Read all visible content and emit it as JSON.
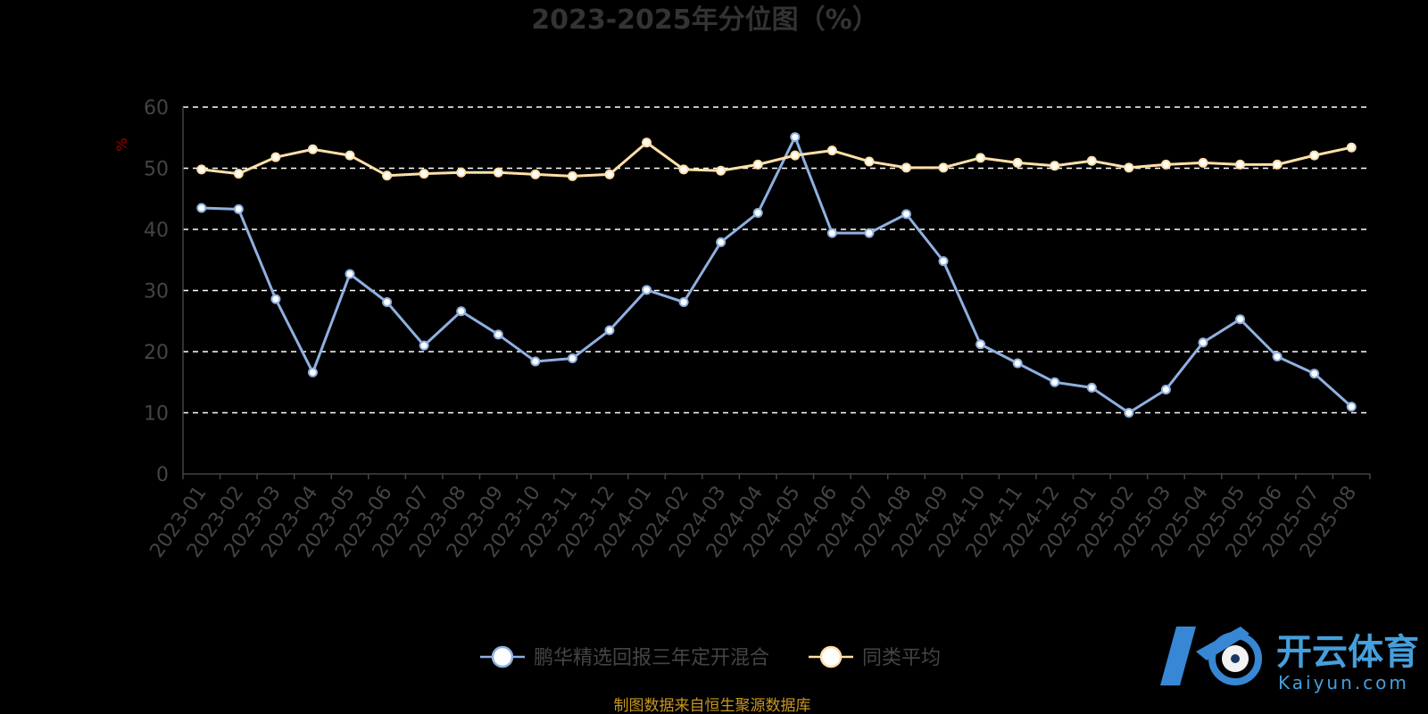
{
  "chart_data": {
    "type": "line",
    "title": "2023-2025年分位图（%）",
    "ylabel": "%",
    "ylim": [
      0,
      60
    ],
    "yticks": [
      0,
      10,
      20,
      30,
      40,
      50,
      60
    ],
    "grid": true,
    "legend_position": "bottom-center",
    "categories": [
      "2023-01",
      "2023-02",
      "2023-03",
      "2023-04",
      "2023-05",
      "2023-06",
      "2023-07",
      "2023-08",
      "2023-09",
      "2023-10",
      "2023-11",
      "2023-12",
      "2024-01",
      "2024-02",
      "2024-03",
      "2024-04",
      "2024-05",
      "2024-06",
      "2024-07",
      "2024-08",
      "2024-09",
      "2024-10",
      "2024-11",
      "2024-12",
      "2025-01",
      "2025-02",
      "2025-03",
      "2025-04",
      "2025-05",
      "2025-06",
      "2025-07",
      "2025-08"
    ],
    "series": [
      {
        "name": "鹏华精选回报三年定开混合",
        "color": "#8fb0e0",
        "values": [
          43.5,
          43.3,
          28.6,
          16.6,
          32.7,
          28.1,
          21.0,
          26.6,
          22.8,
          18.4,
          18.9,
          23.5,
          30.1,
          28.1,
          37.9,
          42.7,
          55.1,
          39.4,
          39.4,
          42.5,
          34.8,
          21.2,
          18.1,
          15.0,
          14.1,
          10.0,
          13.8,
          21.5,
          25.3,
          19.2,
          16.4,
          11.0
        ]
      },
      {
        "name": "同类平均",
        "color": "#ffe0a8",
        "values": [
          49.8,
          49.1,
          51.8,
          53.1,
          52.1,
          48.8,
          49.1,
          49.3,
          49.3,
          49.0,
          48.7,
          49.0,
          54.2,
          49.8,
          49.6,
          50.6,
          52.1,
          52.9,
          51.1,
          50.1,
          50.1,
          51.7,
          50.9,
          50.4,
          51.2,
          50.1,
          50.6,
          50.9,
          50.6,
          50.6,
          52.1,
          53.4
        ]
      }
    ]
  },
  "footer": {
    "source": "制图数据来自恒生聚源数据库"
  },
  "watermark": {
    "brand": "开云体育",
    "domain": "Kaiyun.com"
  }
}
